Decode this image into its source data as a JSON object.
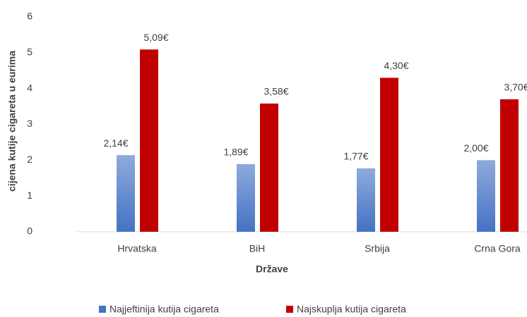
{
  "chart_data": {
    "type": "bar",
    "x_label": "Države",
    "y_label": "cijena kutije cigareta u eurima",
    "categories": [
      "Hrvatska",
      "BiH",
      "Srbija",
      "Crna Gora"
    ],
    "series": [
      {
        "name": "Najjeftinija kutija cigareta",
        "color": "#4472c4",
        "values": [
          2.14,
          1.89,
          1.77,
          2.0
        ],
        "value_labels": [
          "2,14€",
          "1,89€",
          "1,77€",
          "2,00€"
        ]
      },
      {
        "name": "Najskuplja kutija cigareta",
        "color": "#c00000",
        "values": [
          5.09,
          3.58,
          4.3,
          3.7
        ],
        "value_labels": [
          "5,09€",
          "3,58€",
          "4,30€",
          "3,70€"
        ]
      }
    ],
    "ylim": [
      0,
      6
    ],
    "yticks": [
      0,
      1,
      2,
      3,
      4,
      5,
      6
    ],
    "grid": false
  }
}
